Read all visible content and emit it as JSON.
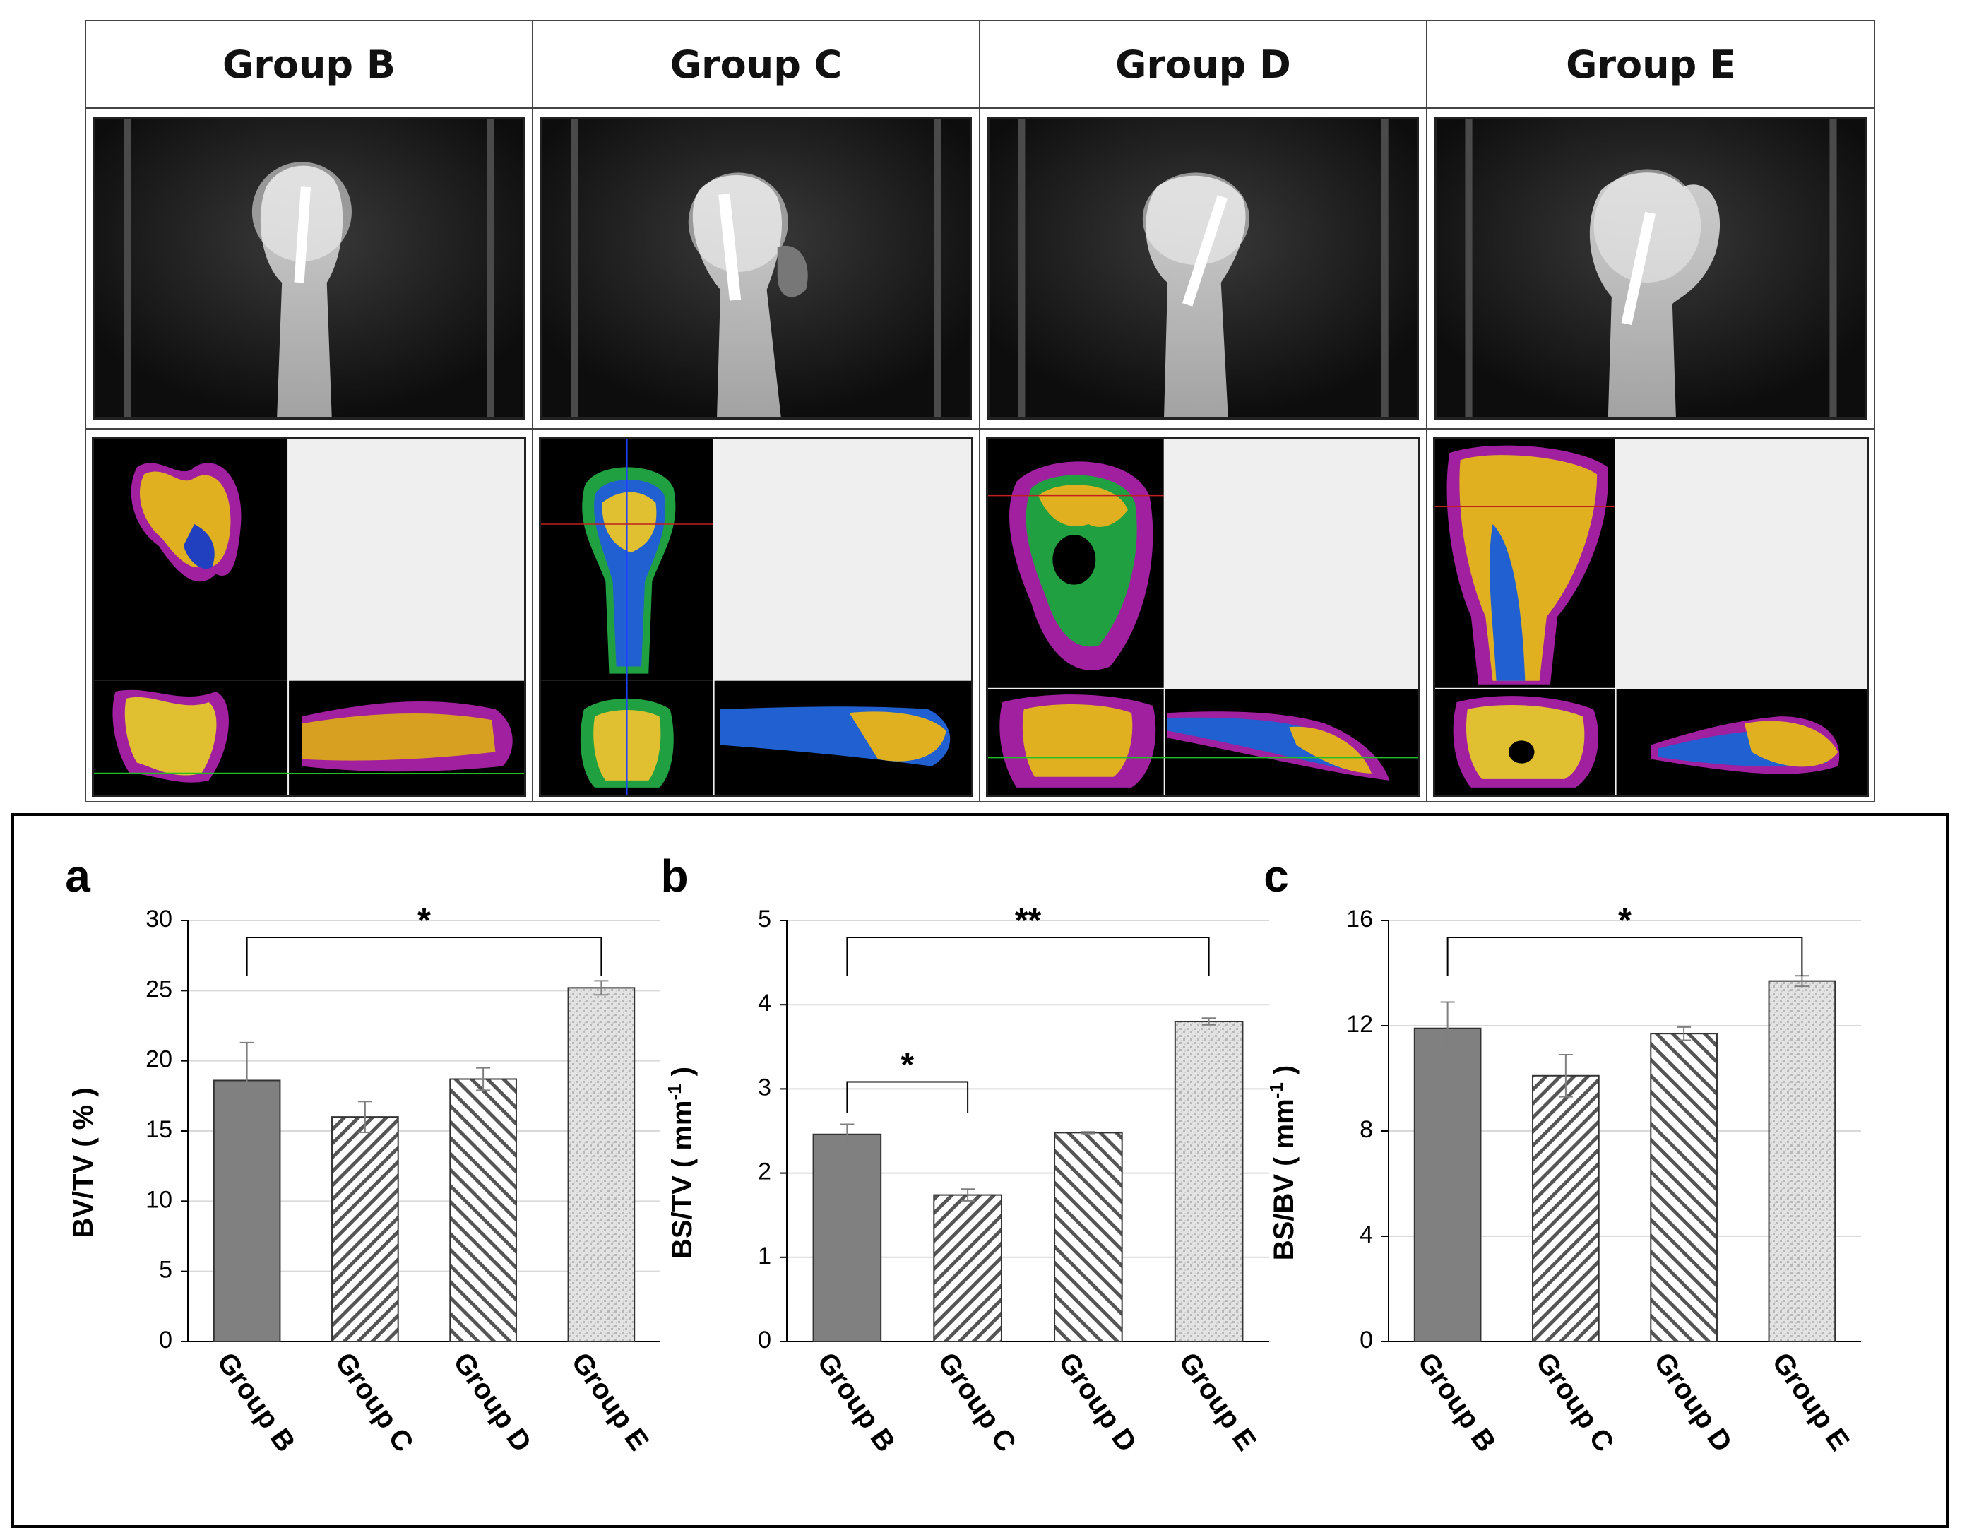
{
  "groups": [
    "Group B",
    "Group C",
    "Group D",
    "Group E"
  ],
  "colors": {
    "solid_bar": "#808080",
    "error_bar": "#7f7f7f",
    "grid": "#d9d9d9",
    "frame": "#444444",
    "xray_bg": "#1a1a1a",
    "ct_panel_bg": "#efefef"
  },
  "images": {
    "xray_description_names": [
      "xray-group-b",
      "xray-group-c",
      "xray-group-d",
      "xray-group-e"
    ],
    "ct_description_names": [
      "microct-group-b",
      "microct-group-c",
      "microct-group-d",
      "microct-group-e"
    ]
  },
  "chart_data": [
    {
      "panel_label": "a",
      "type": "bar",
      "categories": [
        "Group B",
        "Group C",
        "Group D",
        "Group E"
      ],
      "values": [
        18.6,
        16.0,
        18.7,
        25.2
      ],
      "errors": [
        2.7,
        1.1,
        0.8,
        0.5
      ],
      "bar_patterns": [
        "solid",
        "diagonal-back",
        "diagonal-forward",
        "dotted"
      ],
      "ylabel_main": "BV/TV ( % )",
      "ylabel_sup": "",
      "ylabel_tail": "",
      "ylim": [
        0,
        30
      ],
      "yticks": [
        "0",
        "5",
        "10",
        "15",
        "20",
        "25",
        "30"
      ],
      "grid": true,
      "significance": [
        {
          "from": 0,
          "to": 3,
          "label": "*"
        }
      ]
    },
    {
      "panel_label": "b",
      "type": "bar",
      "categories": [
        "Group B",
        "Group C",
        "Group D",
        "Group E"
      ],
      "values": [
        2.46,
        1.74,
        2.48,
        3.8
      ],
      "errors": [
        0.12,
        0.07,
        0.01,
        0.04
      ],
      "bar_patterns": [
        "solid",
        "diagonal-back",
        "diagonal-forward",
        "dotted"
      ],
      "ylabel_main": "BS/TV ( mm",
      "ylabel_sup": "-1",
      "ylabel_tail": " )",
      "ylim": [
        0,
        5
      ],
      "yticks": [
        "0",
        "1",
        "2",
        "3",
        "4",
        "5"
      ],
      "grid": true,
      "significance": [
        {
          "from": 0,
          "to": 3,
          "label": "**"
        },
        {
          "from": 0,
          "to": 1,
          "label": "*"
        }
      ]
    },
    {
      "panel_label": "c",
      "type": "bar",
      "categories": [
        "Group B",
        "Group C",
        "Group D",
        "Group E"
      ],
      "values": [
        11.9,
        10.1,
        11.7,
        13.7
      ],
      "errors": [
        1.0,
        0.8,
        0.25,
        0.2
      ],
      "bar_patterns": [
        "solid",
        "diagonal-back",
        "diagonal-forward",
        "dotted"
      ],
      "ylabel_main": "BS/BV ( mm",
      "ylabel_sup": "-1",
      "ylabel_tail": " )",
      "ylim": [
        0,
        16
      ],
      "yticks": [
        "0",
        "4",
        "8",
        "12",
        "16"
      ],
      "grid": true,
      "significance": [
        {
          "from": 0,
          "to": 3,
          "label": "*"
        }
      ]
    }
  ]
}
